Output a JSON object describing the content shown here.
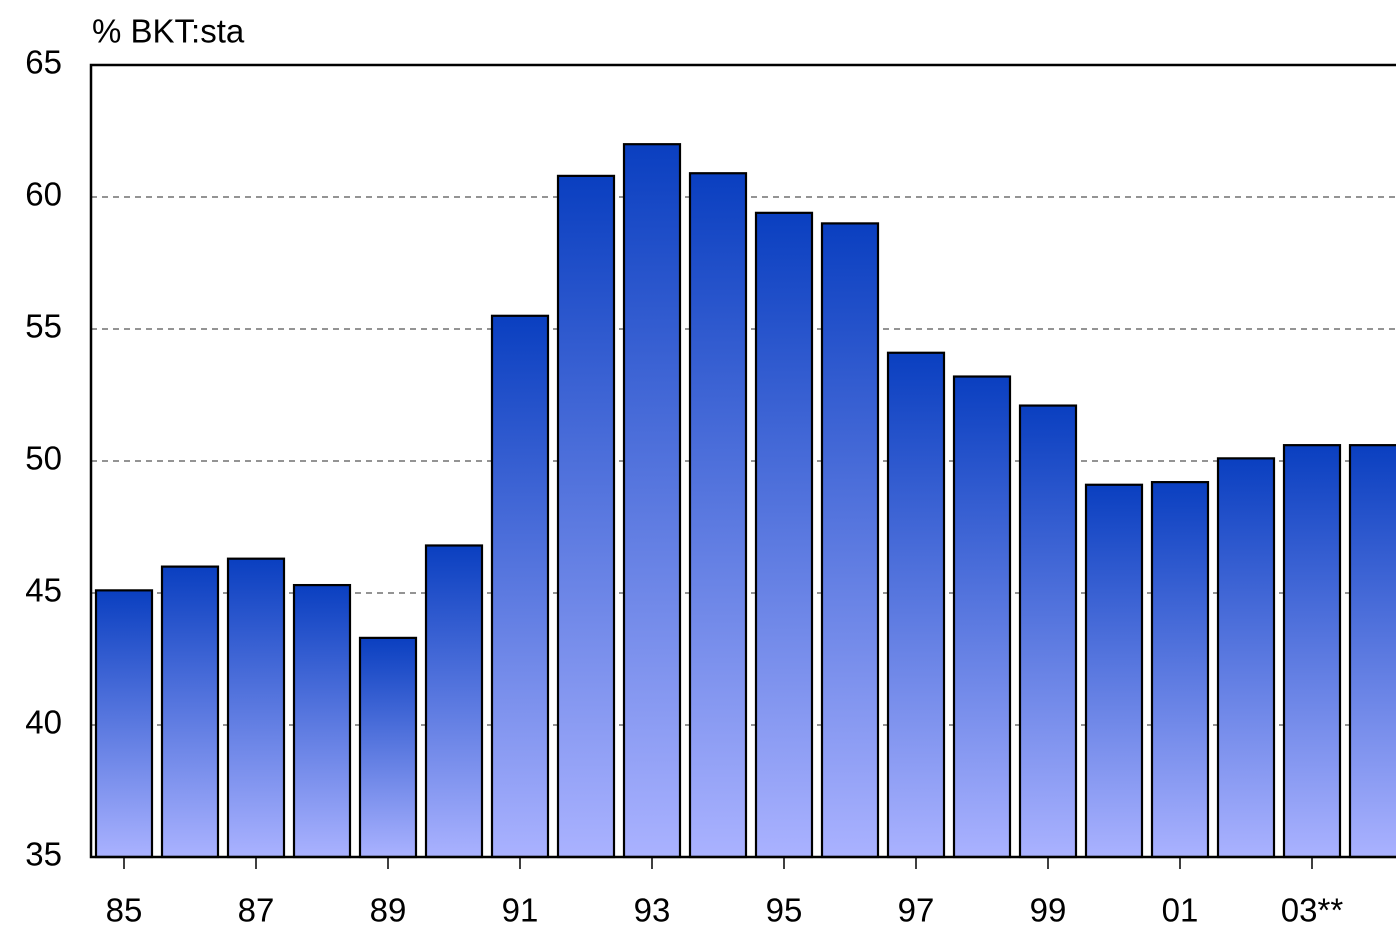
{
  "chart_data": {
    "type": "bar",
    "title": "% BKT:sta",
    "categories": [
      "85",
      null,
      "87",
      null,
      "89",
      null,
      "91",
      null,
      "93",
      null,
      "95",
      null,
      "97",
      null,
      "99",
      null,
      "01",
      null,
      "03**",
      null
    ],
    "values": [
      45.1,
      46.0,
      46.3,
      45.3,
      43.3,
      46.8,
      55.5,
      60.8,
      62.0,
      60.9,
      59.4,
      59.0,
      54.1,
      53.2,
      52.1,
      49.1,
      49.2,
      50.1,
      50.6,
      50.6
    ],
    "color": "#0a3fc0",
    "gradient_end": "#aab2ff",
    "ylim": [
      35,
      65
    ],
    "yticks": [
      35,
      40,
      45,
      50,
      55,
      60,
      65
    ],
    "grid": true
  }
}
